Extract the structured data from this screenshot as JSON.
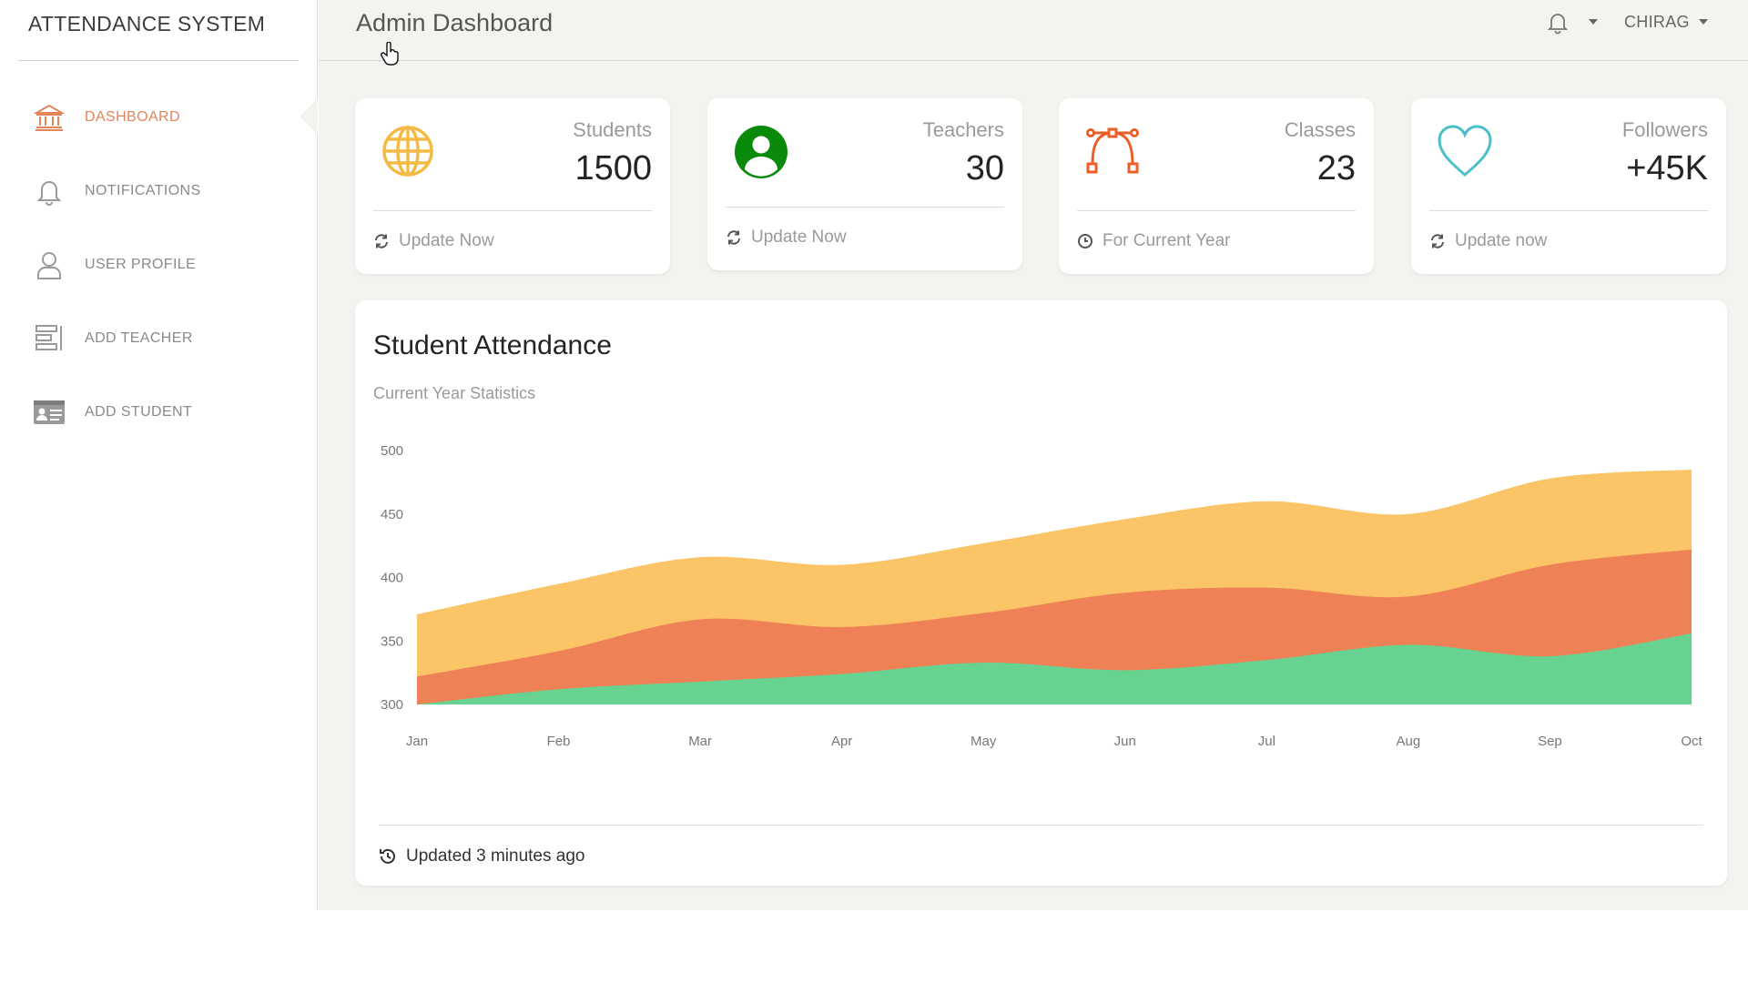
{
  "app": {
    "brand": "ATTENDANCE SYSTEM"
  },
  "sidebar": {
    "items": [
      {
        "label": "DASHBOARD",
        "icon": "bank-icon",
        "active": true
      },
      {
        "label": "NOTIFICATIONS",
        "icon": "bell-icon",
        "active": false
      },
      {
        "label": "USER PROFILE",
        "icon": "user-icon",
        "active": false
      },
      {
        "label": "ADD TEACHER",
        "icon": "list-icon",
        "active": false
      },
      {
        "label": "ADD STUDENT",
        "icon": "id-card-icon",
        "active": false
      }
    ]
  },
  "header": {
    "title": "Admin Dashboard",
    "user": "CHIRAG"
  },
  "stats": [
    {
      "title": "Students",
      "value": "1500",
      "footer": "Update Now",
      "footer_icon": "refresh-icon",
      "icon": "globe-icon",
      "color": "#f3bb45"
    },
    {
      "title": "Teachers",
      "value": "30",
      "footer": "Update Now",
      "footer_icon": "refresh-icon",
      "icon": "user-circle-icon",
      "color": "#0a8a0a"
    },
    {
      "title": "Classes",
      "value": "23",
      "footer": "For Current Year",
      "footer_icon": "clock-icon",
      "icon": "vector-icon",
      "color": "#eb5e28"
    },
    {
      "title": "Followers",
      "value": "+45K",
      "footer": "Update now",
      "footer_icon": "refresh-icon",
      "icon": "heart-icon",
      "color": "#4bc0c8"
    }
  ],
  "attendance": {
    "title": "Student Attendance",
    "subtitle": "Current Year Statistics",
    "footer": "Updated 3 minutes ago"
  },
  "chart_data": {
    "type": "area",
    "categories": [
      "Jan",
      "Feb",
      "Mar",
      "Apr",
      "May",
      "Jun",
      "Jul",
      "Aug",
      "Sep",
      "Oct"
    ],
    "ylim": [
      300,
      500
    ],
    "yticks": [
      300,
      350,
      400,
      450,
      500
    ],
    "colors": [
      "#68d391",
      "#ef8157",
      "#fbc466"
    ],
    "series": [
      {
        "values": [
          300,
          312,
          318,
          324,
          333,
          327,
          335,
          347,
          338,
          356
        ]
      },
      {
        "values": [
          322,
          342,
          367,
          361,
          372,
          388,
          392,
          385,
          410,
          422
        ]
      },
      {
        "values": [
          371,
          395,
          416,
          410,
          427,
          446,
          460,
          450,
          478,
          485
        ]
      }
    ]
  }
}
